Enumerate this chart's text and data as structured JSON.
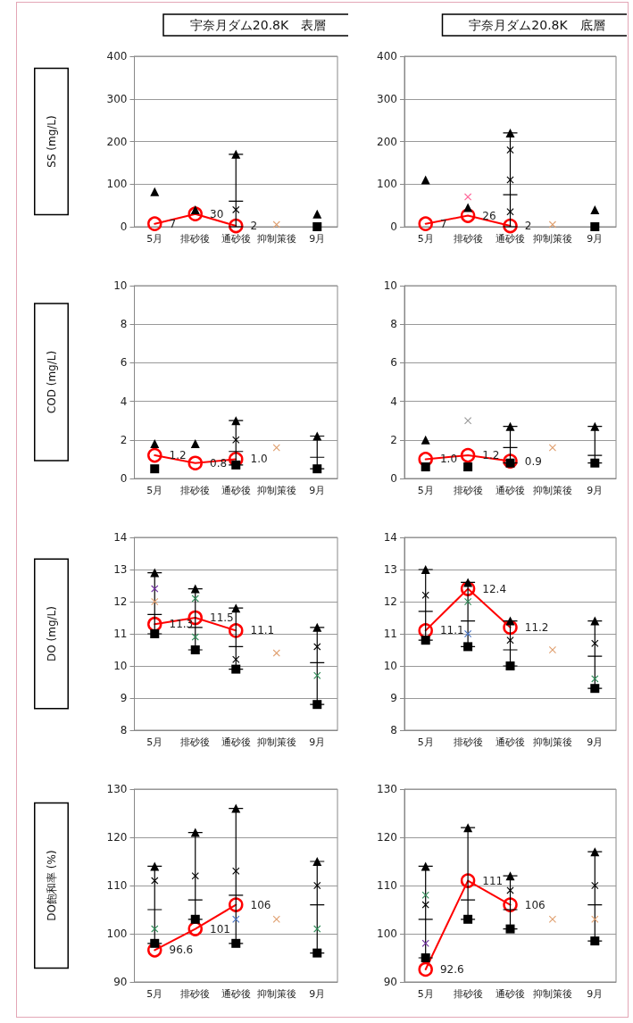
{
  "chart_data": [
    {
      "type": "scatter",
      "title": "宇奈月ダム20.8K　表層",
      "ylabel": "SS (mg/L)",
      "categories": [
        "5月",
        "排砂後",
        "通砂後",
        "抑制策後",
        "9月"
      ],
      "ylim": [
        0,
        400
      ],
      "yticks": [
        0,
        100,
        200,
        300,
        400
      ],
      "grid": "y",
      "series": [
        {
          "type": "scatter",
          "marker": "triangle",
          "color": "#000000",
          "values": [
            82,
            40,
            170,
            null,
            30
          ]
        },
        {
          "type": "scatter",
          "marker": "square",
          "color": "#000000",
          "values": [
            null,
            null,
            null,
            null,
            0
          ]
        },
        {
          "type": "box",
          "color": "#000000",
          "boxes": [
            null,
            null,
            {
              "low": 0,
              "q1": 60,
              "median": 60,
              "q3": 60,
              "high": 170
            },
            null,
            null
          ]
        },
        {
          "type": "scatter",
          "marker": "cross",
          "x": [
            "通砂後",
            "抑制策後"
          ],
          "colors": [
            "#000000",
            "#e0a070"
          ],
          "values": [
            40,
            5
          ]
        },
        {
          "type": "line",
          "marker": "circle",
          "color": "#ff0000",
          "values": [
            7,
            30,
            2,
            null,
            null
          ],
          "value_labels": [
            "7",
            "30",
            "2",
            null,
            null
          ]
        }
      ]
    },
    {
      "type": "scatter",
      "title": "宇奈月ダム20.8K　底層",
      "categories": [
        "5月",
        "排砂後",
        "通砂後",
        "抑制策後",
        "9月"
      ],
      "ylim": [
        0,
        400
      ],
      "yticks": [
        0,
        100,
        200,
        300,
        400
      ],
      "grid": "y",
      "series": [
        {
          "type": "scatter",
          "marker": "triangle",
          "color": "#000000",
          "values": [
            110,
            45,
            220,
            null,
            40
          ]
        },
        {
          "type": "scatter",
          "marker": "square",
          "color": "#000000",
          "values": [
            null,
            null,
            null,
            null,
            0
          ]
        },
        {
          "type": "box",
          "color": "#000000",
          "boxes": [
            null,
            null,
            {
              "low": 0,
              "q1": 75,
              "median": 75,
              "q3": 75,
              "high": 220
            },
            null,
            null
          ]
        },
        {
          "type": "scatter",
          "marker": "cross",
          "x": [
            "排砂後",
            "通砂後",
            "通砂後",
            "通砂後",
            "抑制策後"
          ],
          "colors": [
            "#ff6699",
            "#000000",
            "#000000",
            "#000000",
            "#e0a070"
          ],
          "values": [
            70,
            180,
            110,
            35,
            5
          ]
        },
        {
          "type": "line",
          "marker": "circle",
          "color": "#ff0000",
          "values": [
            7,
            26,
            2,
            null,
            null
          ],
          "value_labels": [
            "7",
            "26",
            "2",
            null,
            null
          ]
        }
      ]
    },
    {
      "type": "scatter",
      "ylabel": "COD (mg/L)",
      "categories": [
        "5月",
        "排砂後",
        "通砂後",
        "抑制策後",
        "9月"
      ],
      "ylim": [
        0,
        10
      ],
      "yticks": [
        0,
        2,
        4,
        6,
        8,
        10
      ],
      "grid": "y",
      "series": [
        {
          "type": "scatter",
          "marker": "triangle",
          "color": "#000000",
          "values": [
            1.8,
            1.8,
            3.0,
            null,
            2.2
          ]
        },
        {
          "type": "scatter",
          "marker": "square",
          "color": "#000000",
          "values": [
            0.5,
            null,
            0.7,
            null,
            0.5
          ]
        },
        {
          "type": "box",
          "color": "#000000",
          "boxes": [
            null,
            null,
            {
              "low": 0.7,
              "q1": 1.4,
              "median": 1.4,
              "q3": 1.4,
              "high": 3.0
            },
            null,
            {
              "low": 0.5,
              "q1": 1.1,
              "median": 1.1,
              "q3": 1.1,
              "high": 2.2
            }
          ]
        },
        {
          "type": "scatter",
          "marker": "cross",
          "x": [
            "通砂後",
            "抑制策後"
          ],
          "colors": [
            "#000000",
            "#e0a070"
          ],
          "values": [
            2.0,
            1.6
          ]
        },
        {
          "type": "line",
          "marker": "circle",
          "color": "#ff0000",
          "values": [
            1.2,
            0.8,
            1.0,
            null,
            null
          ],
          "value_labels": [
            "1.2",
            "0.8",
            "1.0",
            null,
            null
          ]
        }
      ]
    },
    {
      "type": "scatter",
      "categories": [
        "5月",
        "排砂後",
        "通砂後",
        "抑制策後",
        "9月"
      ],
      "ylim": [
        0,
        10
      ],
      "yticks": [
        0,
        2,
        4,
        6,
        8,
        10
      ],
      "grid": "y",
      "series": [
        {
          "type": "scatter",
          "marker": "triangle",
          "color": "#000000",
          "values": [
            2.0,
            null,
            2.7,
            null,
            2.7
          ]
        },
        {
          "type": "scatter",
          "marker": "square",
          "color": "#000000",
          "values": [
            0.6,
            0.6,
            0.8,
            null,
            0.8
          ]
        },
        {
          "type": "box",
          "color": "#000000",
          "boxes": [
            null,
            null,
            {
              "low": 0.8,
              "q1": 1.6,
              "median": 1.6,
              "q3": 1.6,
              "high": 2.7
            },
            null,
            {
              "low": 0.8,
              "q1": 1.2,
              "median": 1.2,
              "q3": 1.2,
              "high": 2.7
            }
          ]
        },
        {
          "type": "scatter",
          "marker": "cross",
          "x": [
            "排砂後",
            "抑制策後"
          ],
          "colors": [
            "#999999",
            "#e0a070"
          ],
          "values": [
            3.0,
            1.6
          ]
        },
        {
          "type": "line",
          "marker": "circle",
          "color": "#ff0000",
          "values": [
            1.0,
            1.2,
            0.9,
            null,
            null
          ],
          "value_labels": [
            "1.0",
            "1.2",
            "0.9",
            null,
            null
          ]
        }
      ]
    },
    {
      "type": "scatter",
      "ylabel": "DO (mg/L)",
      "categories": [
        "5月",
        "排砂後",
        "通砂後",
        "抑制策後",
        "9月"
      ],
      "ylim": [
        8,
        14
      ],
      "yticks": [
        8,
        9,
        10,
        11,
        12,
        13,
        14
      ],
      "grid": "y",
      "series": [
        {
          "type": "scatter",
          "marker": "triangle",
          "color": "#000000",
          "values": [
            12.9,
            12.4,
            11.8,
            null,
            11.2
          ]
        },
        {
          "type": "scatter",
          "marker": "square",
          "color": "#000000",
          "values": [
            11.0,
            10.5,
            9.9,
            null,
            8.8
          ]
        },
        {
          "type": "box",
          "color": "#000000",
          "boxes": [
            {
              "low": 11.0,
              "q1": 11.6,
              "median": 11.6,
              "q3": 11.6,
              "high": 12.9
            },
            {
              "low": 10.5,
              "q1": 11.2,
              "median": 11.2,
              "q3": 11.2,
              "high": 12.4
            },
            {
              "low": 9.9,
              "q1": 10.6,
              "median": 10.6,
              "q3": 10.6,
              "high": 11.8
            },
            null,
            {
              "low": 8.8,
              "q1": 10.1,
              "median": 10.1,
              "q3": 10.1,
              "high": 11.2
            }
          ]
        },
        {
          "type": "scatter",
          "marker": "cross",
          "x": [
            "5月",
            "5月",
            "排砂後",
            "排砂後",
            "通砂後",
            "抑制策後",
            "9月",
            "9月"
          ],
          "colors": [
            "#7030a0",
            "#e0a070",
            "#2e8b57",
            "#2e8b57",
            "#000000",
            "#e0a070",
            "#000000",
            "#2e8b57"
          ],
          "values": [
            12.4,
            12.0,
            12.1,
            10.9,
            10.2,
            10.4,
            10.6,
            9.7
          ]
        },
        {
          "type": "line",
          "marker": "circle",
          "color": "#ff0000",
          "values": [
            11.3,
            11.5,
            11.1,
            null,
            null
          ],
          "value_labels": [
            "11.3",
            "11.5",
            "11.1",
            null,
            null
          ]
        }
      ]
    },
    {
      "type": "scatter",
      "categories": [
        "5月",
        "排砂後",
        "通砂後",
        "抑制策後",
        "9月"
      ],
      "ylim": [
        8,
        14
      ],
      "yticks": [
        8,
        9,
        10,
        11,
        12,
        13,
        14
      ],
      "grid": "y",
      "series": [
        {
          "type": "scatter",
          "marker": "triangle",
          "color": "#000000",
          "values": [
            13.0,
            12.6,
            11.4,
            null,
            11.4
          ]
        },
        {
          "type": "scatter",
          "marker": "square",
          "color": "#000000",
          "values": [
            10.8,
            10.6,
            10.0,
            null,
            9.3
          ]
        },
        {
          "type": "box",
          "color": "#000000",
          "boxes": [
            {
              "low": 10.8,
              "q1": 11.7,
              "median": 11.7,
              "q3": 11.7,
              "high": 13.0
            },
            {
              "low": 10.6,
              "q1": 11.4,
              "median": 11.4,
              "q3": 11.4,
              "high": 12.6
            },
            {
              "low": 10.0,
              "q1": 10.5,
              "median": 10.5,
              "q3": 10.5,
              "high": 11.4
            },
            null,
            {
              "low": 9.3,
              "q1": 10.3,
              "median": 10.3,
              "q3": 10.3,
              "high": 11.4
            }
          ]
        },
        {
          "type": "scatter",
          "marker": "cross",
          "x": [
            "5月",
            "排砂後",
            "排砂後",
            "通砂後",
            "抑制策後",
            "9月",
            "9月"
          ],
          "colors": [
            "#000000",
            "#2e8b57",
            "#4472c4",
            "#000000",
            "#e0a070",
            "#000000",
            "#2e8b57"
          ],
          "values": [
            12.2,
            12.0,
            11.0,
            10.8,
            10.5,
            10.7,
            9.6
          ]
        },
        {
          "type": "line",
          "marker": "circle",
          "color": "#ff0000",
          "values": [
            11.1,
            12.4,
            11.2,
            null,
            null
          ],
          "value_labels": [
            "11.1",
            "12.4",
            "11.2",
            null,
            null
          ]
        }
      ]
    },
    {
      "type": "scatter",
      "ylabel": "DO飽和率 (%)",
      "categories": [
        "5月",
        "排砂後",
        "通砂後",
        "抑制策後",
        "9月"
      ],
      "ylim": [
        90,
        130
      ],
      "yticks": [
        90,
        100,
        110,
        120,
        130
      ],
      "grid": "y",
      "series": [
        {
          "type": "scatter",
          "marker": "triangle",
          "color": "#000000",
          "values": [
            114,
            121,
            126,
            null,
            115
          ]
        },
        {
          "type": "scatter",
          "marker": "square",
          "color": "#000000",
          "values": [
            98,
            103,
            98,
            null,
            96
          ]
        },
        {
          "type": "box",
          "color": "#000000",
          "boxes": [
            {
              "low": 98,
              "q1": 105,
              "median": 105,
              "q3": 105,
              "high": 114
            },
            {
              "low": 103,
              "q1": 107,
              "median": 107,
              "q3": 107,
              "high": 121
            },
            {
              "low": 98,
              "q1": 108,
              "median": 108,
              "q3": 108,
              "high": 126
            },
            null,
            {
              "low": 96,
              "q1": 106,
              "median": 106,
              "q3": 106,
              "high": 115
            }
          ]
        },
        {
          "type": "scatter",
          "marker": "cross",
          "x": [
            "5月",
            "5月",
            "排砂後",
            "通砂後",
            "通砂後",
            "抑制策後",
            "9月",
            "9月"
          ],
          "colors": [
            "#000000",
            "#2e8b57",
            "#000000",
            "#000000",
            "#4472c4",
            "#e0a070",
            "#000000",
            "#2e8b57"
          ],
          "values": [
            111,
            101,
            112,
            113,
            103,
            103,
            110,
            101
          ]
        },
        {
          "type": "line",
          "marker": "circle",
          "color": "#ff0000",
          "values": [
            96.6,
            101,
            106,
            null,
            null
          ],
          "value_labels": [
            "96.6",
            "101",
            "106",
            null,
            null
          ]
        }
      ]
    },
    {
      "type": "scatter",
      "categories": [
        "5月",
        "排砂後",
        "通砂後",
        "抑制策後",
        "9月"
      ],
      "ylim": [
        90,
        130
      ],
      "yticks": [
        90,
        100,
        110,
        120,
        130
      ],
      "grid": "y",
      "series": [
        {
          "type": "scatter",
          "marker": "triangle",
          "color": "#000000",
          "values": [
            114,
            122,
            112,
            null,
            117
          ]
        },
        {
          "type": "scatter",
          "marker": "square",
          "color": "#000000",
          "values": [
            95,
            103,
            101,
            null,
            98.5
          ]
        },
        {
          "type": "box",
          "color": "#000000",
          "boxes": [
            {
              "low": 95,
              "q1": 103,
              "median": 103,
              "q3": 103,
              "high": 114
            },
            {
              "low": 103,
              "q1": 107,
              "median": 107,
              "q3": 107,
              "high": 122
            },
            {
              "low": 101,
              "q1": 105,
              "median": 105,
              "q3": 105,
              "high": 112
            },
            null,
            {
              "low": 98.5,
              "q1": 106,
              "median": 106,
              "q3": 106,
              "high": 117
            }
          ]
        },
        {
          "type": "scatter",
          "marker": "cross",
          "x": [
            "5月",
            "5月",
            "5月",
            "通砂後",
            "抑制策後",
            "9月",
            "9月"
          ],
          "colors": [
            "#2e8b57",
            "#000000",
            "#7030a0",
            "#000000",
            "#e0a070",
            "#000000",
            "#e0a070"
          ],
          "values": [
            108,
            106,
            98,
            109,
            103,
            110,
            103
          ]
        },
        {
          "type": "line",
          "marker": "circle",
          "color": "#ff0000",
          "values": [
            92.6,
            111,
            106,
            null,
            null
          ],
          "value_labels": [
            "92.6",
            "111",
            "106",
            null,
            null
          ]
        }
      ]
    }
  ]
}
